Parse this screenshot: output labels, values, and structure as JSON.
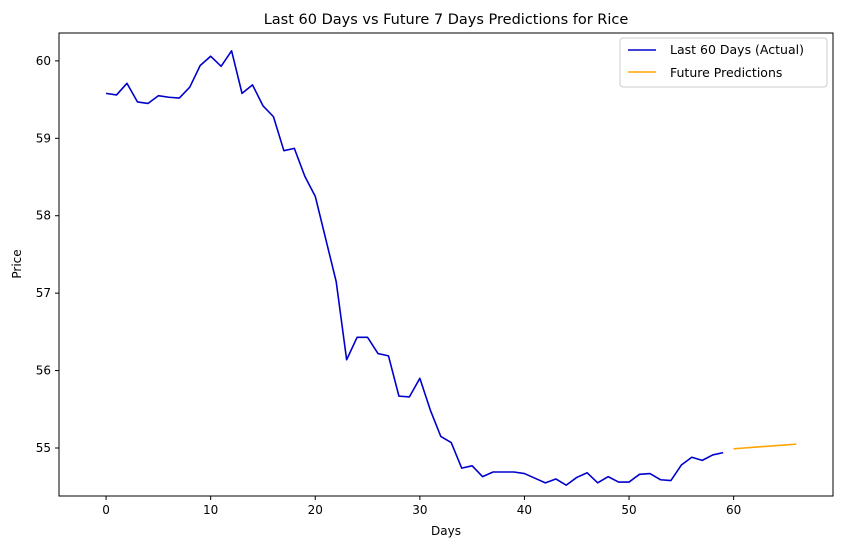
{
  "chart_data": {
    "type": "line",
    "title": "Last 60 Days vs Future 7 Days Predictions for Rice",
    "xlabel": "Days",
    "ylabel": "Price",
    "xlim": [
      -4.5,
      69.5
    ],
    "ylim": [
      54.38,
      60.36
    ],
    "xticks": [
      0,
      10,
      20,
      30,
      40,
      50,
      60
    ],
    "yticks": [
      55,
      56,
      57,
      58,
      59,
      60
    ],
    "grid": false,
    "legend": "top-right",
    "series": [
      {
        "name": "Last 60 Days (Actual)",
        "color": "#0000cd",
        "x": [
          0,
          1,
          2,
          3,
          4,
          5,
          6,
          7,
          8,
          9,
          10,
          11,
          12,
          13,
          14,
          15,
          16,
          17,
          18,
          19,
          20,
          21,
          22,
          23,
          24,
          25,
          26,
          27,
          28,
          29,
          30,
          31,
          32,
          33,
          34,
          35,
          36,
          37,
          38,
          39,
          40,
          41,
          42,
          43,
          44,
          45,
          46,
          47,
          48,
          49,
          50,
          51,
          52,
          53,
          54,
          55,
          56,
          57,
          58,
          59
        ],
        "y": [
          59.58,
          59.56,
          59.71,
          59.47,
          59.45,
          59.55,
          59.53,
          59.52,
          59.66,
          59.94,
          60.06,
          59.93,
          60.13,
          59.58,
          59.69,
          59.42,
          59.28,
          58.84,
          58.87,
          58.51,
          58.25,
          57.7,
          57.15,
          56.14,
          56.43,
          56.43,
          56.22,
          56.19,
          55.67,
          55.66,
          55.9,
          55.49,
          55.15,
          55.07,
          54.74,
          54.77,
          54.63,
          54.69,
          54.69,
          54.69,
          54.67,
          54.61,
          54.55,
          54.6,
          54.52,
          54.62,
          54.68,
          54.55,
          54.63,
          54.56,
          54.56,
          54.66,
          54.67,
          54.59,
          54.58,
          54.78,
          54.88,
          54.84,
          54.91,
          54.94
        ]
      },
      {
        "name": "Future Predictions",
        "color": "#ffa500",
        "x": [
          60,
          61,
          62,
          63,
          64,
          65,
          66
        ],
        "y": [
          54.99,
          55.0,
          55.01,
          55.02,
          55.03,
          55.04,
          55.05
        ]
      }
    ]
  }
}
